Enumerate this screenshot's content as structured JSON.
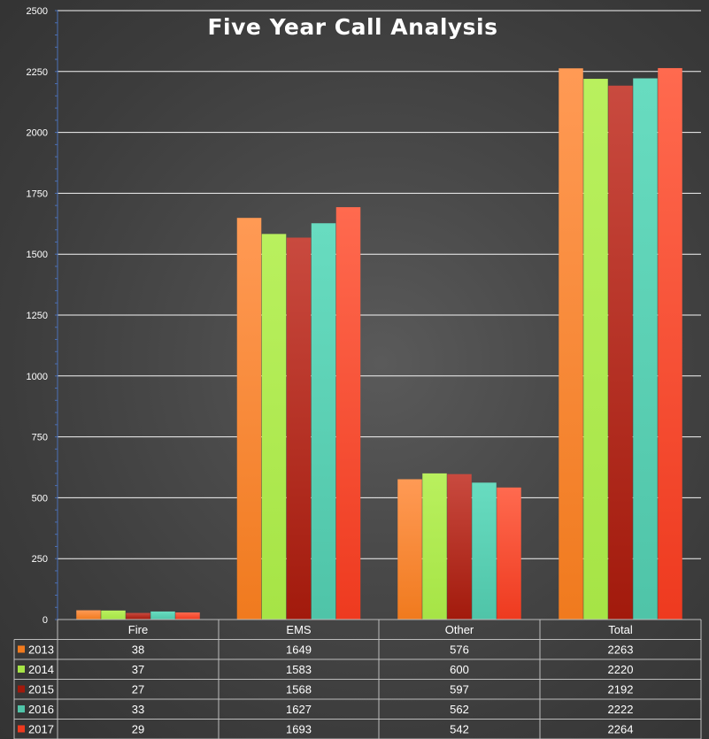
{
  "chart_data": {
    "type": "bar",
    "title": "Five Year Call Analysis",
    "categories": [
      "Fire",
      "EMS",
      "Other",
      "Total"
    ],
    "ylim": [
      0,
      2500
    ],
    "yticks": [
      0,
      250,
      500,
      750,
      1000,
      1250,
      1500,
      1750,
      2000,
      2250,
      2500
    ],
    "grid": true,
    "legend": "data-table",
    "series": [
      {
        "name": "2013",
        "values": [
          38,
          1649,
          576,
          2263
        ],
        "color": "#f07a1e",
        "shade": "#ff9a55"
      },
      {
        "name": "2014",
        "values": [
          37,
          1583,
          600,
          2220
        ],
        "color": "#a6e446",
        "shade": "#b9f05e"
      },
      {
        "name": "2015",
        "values": [
          27,
          1568,
          597,
          2192
        ],
        "color": "#a21a0c",
        "shade": "#c94a3f"
      },
      {
        "name": "2016",
        "values": [
          33,
          1627,
          562,
          2222
        ],
        "color": "#4fc4a8",
        "shade": "#68dcc0"
      },
      {
        "name": "2017",
        "values": [
          29,
          1693,
          542,
          2264
        ],
        "color": "#ee3a1f",
        "shade": "#ff6a4f"
      }
    ]
  }
}
